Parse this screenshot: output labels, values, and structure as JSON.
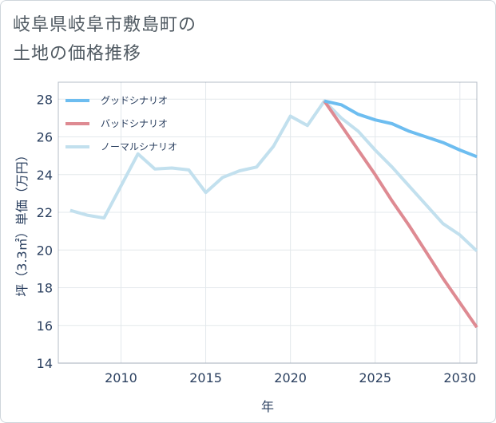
{
  "header": {
    "title_line1": "岐阜県岐阜市敷島町の",
    "title_line2": "土地の価格推移"
  },
  "chart_data": {
    "type": "line",
    "title": "岐阜県岐阜市敷島町の土地の価格推移",
    "xlabel": "年",
    "ylabel": "坪（3.3㎡）単価（万円）",
    "xlim": [
      2006.3,
      2031
    ],
    "ylim": [
      14,
      28.9
    ],
    "xticks": [
      2010,
      2015,
      2020,
      2025,
      2030
    ],
    "yticks": [
      14,
      16,
      18,
      20,
      22,
      24,
      26,
      28
    ],
    "legend_position": "top-left",
    "series": [
      {
        "name": "グッドシナリオ",
        "color": "#6dbdf0",
        "x": [
          2022,
          2023,
          2024,
          2025,
          2026,
          2027,
          2028,
          2029,
          2030,
          2031
        ],
        "y": [
          27.9,
          27.7,
          27.2,
          26.9,
          26.7,
          26.3,
          26.0,
          25.7,
          25.3,
          24.95
        ]
      },
      {
        "name": "バッドシナリオ",
        "color": "#de8a92",
        "x": [
          2022,
          2023,
          2024,
          2025,
          2026,
          2027,
          2028,
          2029,
          2030,
          2031
        ],
        "y": [
          27.9,
          26.6,
          25.3,
          24.0,
          22.6,
          21.3,
          19.9,
          18.5,
          17.2,
          15.9
        ]
      },
      {
        "name": "ノーマルシナリオ",
        "color": "#c2e0ee",
        "x": [
          2007,
          2008,
          2009,
          2010,
          2011,
          2012,
          2013,
          2014,
          2015,
          2016,
          2017,
          2018,
          2019,
          2020,
          2021,
          2022,
          2023,
          2024,
          2025,
          2026,
          2027,
          2028,
          2029,
          2030,
          2031
        ],
        "y": [
          22.1,
          21.85,
          21.7,
          23.4,
          25.1,
          24.3,
          24.35,
          24.25,
          23.05,
          23.85,
          24.2,
          24.4,
          25.5,
          27.1,
          26.6,
          27.9,
          27.0,
          26.3,
          25.3,
          24.4,
          23.4,
          22.4,
          21.4,
          20.8,
          19.95
        ]
      }
    ]
  }
}
